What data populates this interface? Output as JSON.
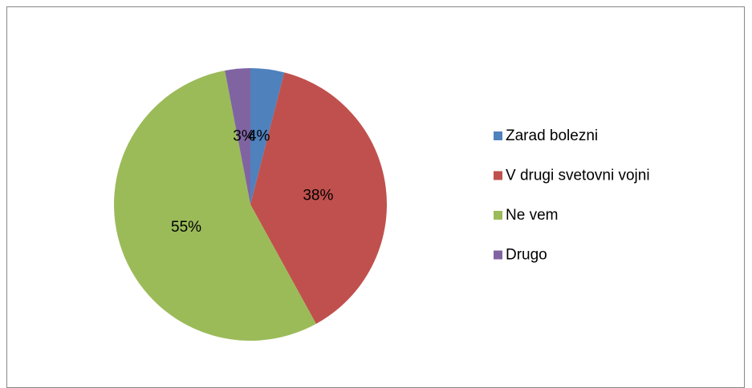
{
  "chart_data": {
    "type": "pie",
    "categories": [
      "Zarad bolezni",
      "V drugi svetovni vojni",
      "Ne vem",
      "Drugo"
    ],
    "values": [
      4,
      38,
      55,
      3
    ],
    "value_labels": [
      "4%",
      "38%",
      "55%",
      "3%"
    ],
    "colors": [
      "#4f81bd",
      "#c0504d",
      "#9bbb59",
      "#8064a2"
    ],
    "legend": "right"
  }
}
